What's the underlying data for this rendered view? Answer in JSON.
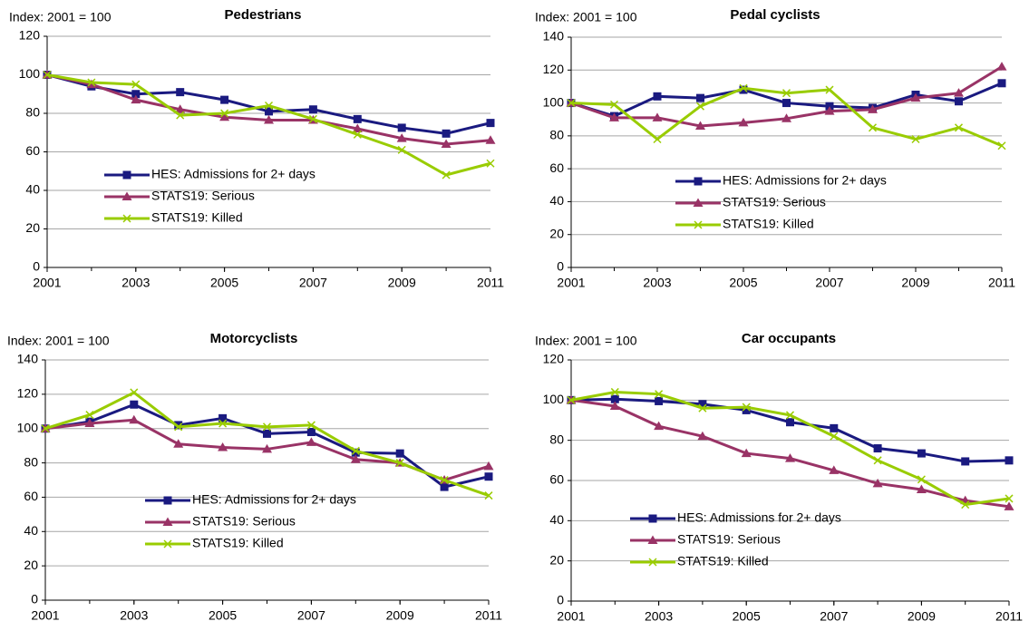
{
  "chart_data": [
    {
      "type": "line",
      "title": "Pedestrians",
      "ylabel": "Index: 2001 = 100",
      "x": [
        2001,
        2002,
        2003,
        2004,
        2005,
        2006,
        2007,
        2008,
        2009,
        2010,
        2011
      ],
      "xlim": [
        2001,
        2011
      ],
      "xticks": [
        2001,
        2003,
        2005,
        2007,
        2009,
        2011
      ],
      "ylim": [
        0,
        120
      ],
      "yticks": [
        0,
        20,
        40,
        60,
        80,
        100,
        120
      ],
      "grid": true,
      "series": [
        {
          "name": "HES: Admissions for 2+ days",
          "color": "#1a1a80",
          "marker": "square",
          "values": [
            100,
            94,
            90,
            91,
            87,
            81,
            82,
            77,
            72.5,
            69.5,
            75
          ]
        },
        {
          "name": "STATS19: Serious",
          "color": "#993366",
          "marker": "triangle",
          "values": [
            100,
            95,
            87,
            82,
            78,
            76.5,
            76.5,
            72,
            67,
            64,
            66
          ]
        },
        {
          "name": "STATS19: Killed",
          "color": "#99cc00",
          "marker": "x",
          "values": [
            100,
            96,
            95,
            79,
            80,
            84,
            77,
            69,
            61,
            48,
            54
          ]
        }
      ]
    },
    {
      "type": "line",
      "title": "Pedal cyclists",
      "ylabel": "Index: 2001 = 100",
      "x": [
        2001,
        2002,
        2003,
        2004,
        2005,
        2006,
        2007,
        2008,
        2009,
        2010,
        2011
      ],
      "xlim": [
        2001,
        2011
      ],
      "xticks": [
        2001,
        2003,
        2005,
        2007,
        2009,
        2011
      ],
      "ylim": [
        0,
        140
      ],
      "yticks": [
        0,
        20,
        40,
        60,
        80,
        100,
        120,
        140
      ],
      "grid": true,
      "series": [
        {
          "name": "HES: Admissions for 2+ days",
          "color": "#1a1a80",
          "marker": "square",
          "values": [
            100,
            92,
            104,
            103,
            108,
            100,
            98,
            97,
            105,
            101,
            112
          ]
        },
        {
          "name": "STATS19: Serious",
          "color": "#993366",
          "marker": "triangle",
          "values": [
            100,
            91,
            91,
            86,
            88,
            90.5,
            95,
            96,
            103,
            106,
            122
          ]
        },
        {
          "name": "STATS19: Killed",
          "color": "#99cc00",
          "marker": "x",
          "values": [
            100,
            99,
            78,
            98,
            109,
            106,
            108,
            85,
            78,
            85,
            74
          ]
        }
      ]
    },
    {
      "type": "line",
      "title": "Motorcyclists",
      "ylabel": "Index: 2001 = 100",
      "x": [
        2001,
        2002,
        2003,
        2004,
        2005,
        2006,
        2007,
        2008,
        2009,
        2010,
        2011
      ],
      "xlim": [
        2001,
        2011
      ],
      "xticks": [
        2001,
        2003,
        2005,
        2007,
        2009,
        2011
      ],
      "ylim": [
        0,
        140
      ],
      "yticks": [
        0,
        20,
        40,
        60,
        80,
        100,
        120,
        140
      ],
      "grid": true,
      "series": [
        {
          "name": "HES: Admissions for 2+ days",
          "color": "#1a1a80",
          "marker": "square",
          "values": [
            100,
            104,
            114,
            102,
            106,
            97,
            98,
            86,
            85.5,
            66,
            72
          ]
        },
        {
          "name": "STATS19: Serious",
          "color": "#993366",
          "marker": "triangle",
          "values": [
            100,
            103,
            105,
            91,
            89,
            88,
            92,
            82,
            80,
            70,
            78
          ]
        },
        {
          "name": "STATS19: Killed",
          "color": "#99cc00",
          "marker": "x",
          "values": [
            100,
            108,
            121,
            101,
            103,
            101,
            102,
            87,
            80,
            70,
            61
          ]
        }
      ]
    },
    {
      "type": "line",
      "title": "Car occupants",
      "ylabel": "Index: 2001 = 100",
      "x": [
        2001,
        2002,
        2003,
        2004,
        2005,
        2006,
        2007,
        2008,
        2009,
        2010,
        2011
      ],
      "xlim": [
        2001,
        2011
      ],
      "xticks": [
        2001,
        2003,
        2005,
        2007,
        2009,
        2011
      ],
      "ylim": [
        0,
        120
      ],
      "yticks": [
        0,
        20,
        40,
        60,
        80,
        100,
        120
      ],
      "grid": true,
      "series": [
        {
          "name": "HES: Admissions for 2+ days",
          "color": "#1a1a80",
          "marker": "square",
          "values": [
            100,
            100.5,
            99.5,
            98,
            95,
            89,
            86,
            76,
            73.5,
            69.5,
            70
          ]
        },
        {
          "name": "STATS19: Serious",
          "color": "#993366",
          "marker": "triangle",
          "values": [
            100,
            97,
            87,
            82,
            73.5,
            71,
            65,
            58.5,
            55.5,
            50,
            47
          ]
        },
        {
          "name": "STATS19: Killed",
          "color": "#99cc00",
          "marker": "x",
          "values": [
            100,
            104,
            103,
            96,
            96.5,
            92.5,
            82,
            70,
            60.5,
            48,
            51
          ]
        }
      ]
    }
  ]
}
